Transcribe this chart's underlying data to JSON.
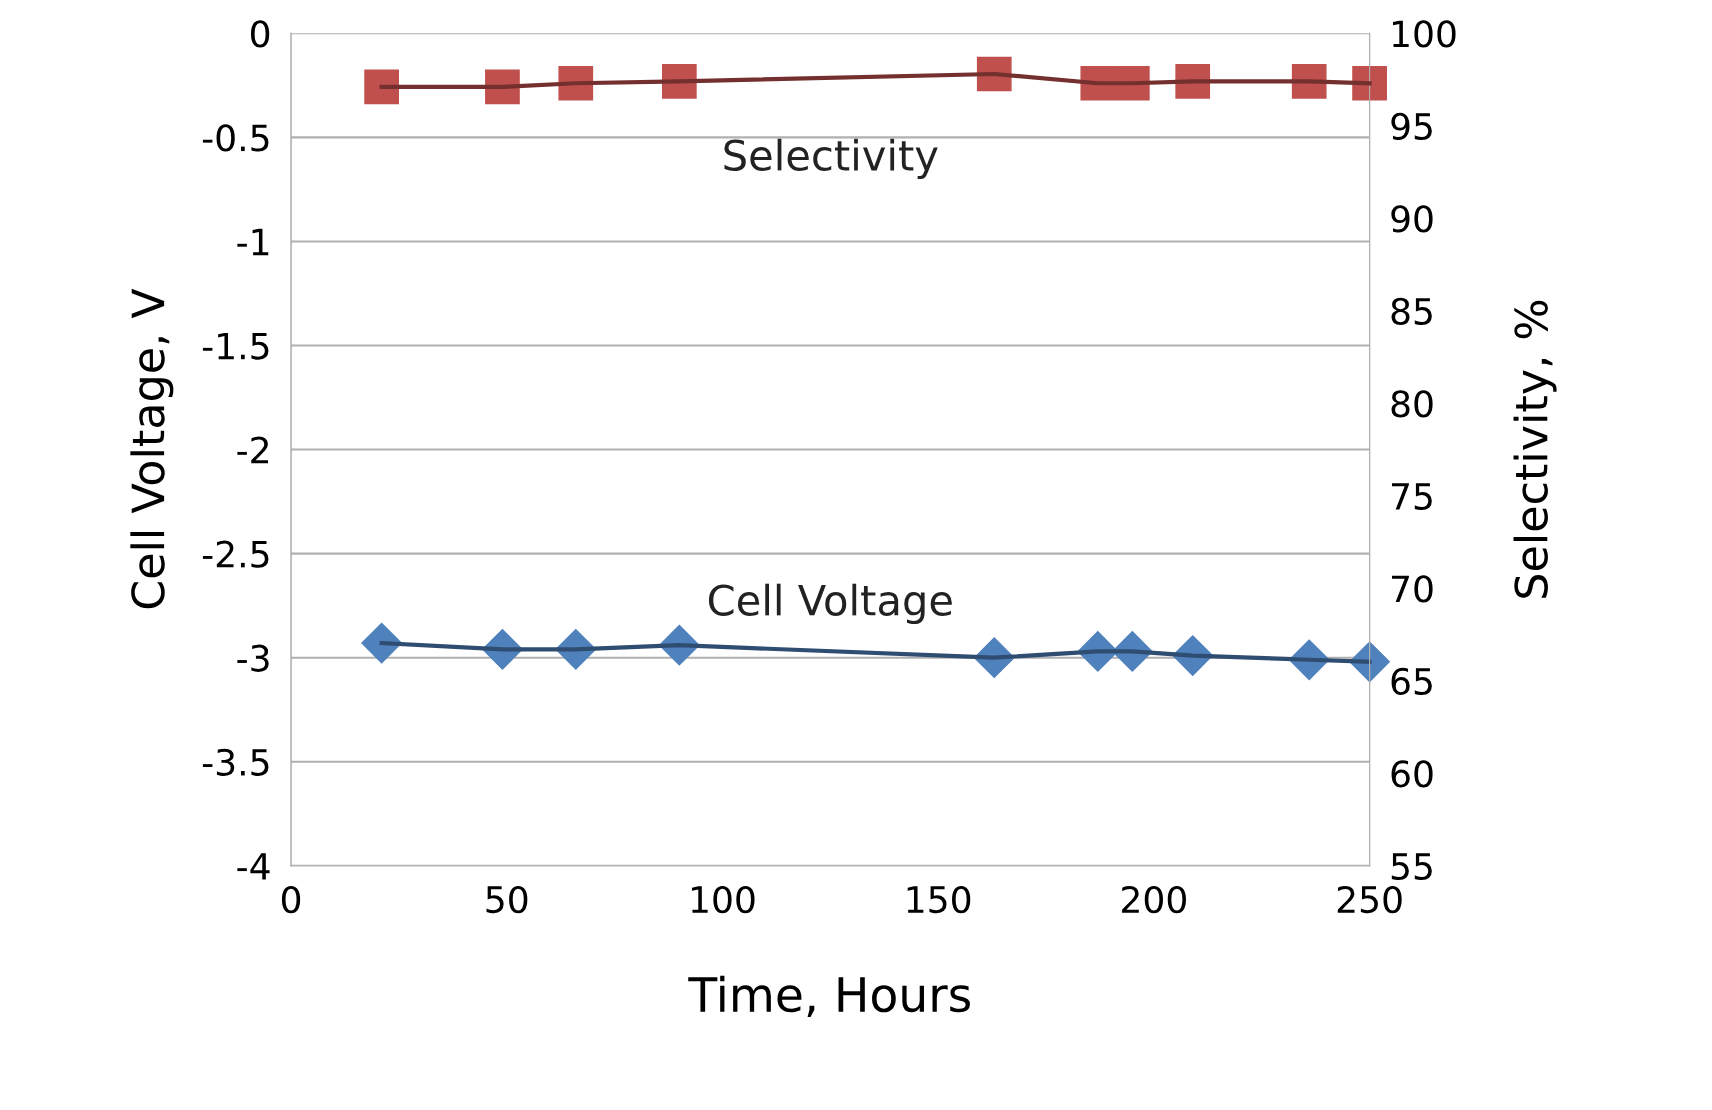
{
  "chart_data": {
    "type": "line",
    "xlabel": "Time, Hours",
    "ylabel": "Cell Voltage, V",
    "y2label": "Selectivity, %",
    "xlim": [
      0,
      250
    ],
    "xticks": [
      0,
      50,
      100,
      150,
      200,
      250
    ],
    "ylim": [
      -4,
      0
    ],
    "yticks": [
      -4,
      -3.5,
      -3,
      -2.5,
      -2,
      -1.5,
      -1,
      -0.5,
      0
    ],
    "y2lim": [
      55,
      100
    ],
    "y2ticks": [
      55,
      60,
      65,
      70,
      75,
      80,
      85,
      90,
      95,
      100
    ],
    "grid": "y",
    "legend": false,
    "series": [
      {
        "name": "Selectivity",
        "axis": "y2",
        "color": "#c0504d",
        "marker": "square",
        "x": [
          21,
          49,
          66,
          90,
          163,
          187,
          195,
          209,
          236,
          250
        ],
        "values": [
          97.1,
          97.1,
          97.3,
          97.4,
          97.8,
          97.3,
          97.3,
          97.4,
          97.4,
          97.3
        ]
      },
      {
        "name": "Cell Voltage",
        "axis": "y",
        "color": "#4f81bd",
        "marker": "diamond",
        "x": [
          21,
          49,
          66,
          90,
          163,
          187,
          195,
          209,
          236,
          250
        ],
        "values": [
          -2.93,
          -2.96,
          -2.96,
          -2.94,
          -3.0,
          -2.97,
          -2.97,
          -2.99,
          -3.01,
          -3.02
        ]
      }
    ]
  }
}
